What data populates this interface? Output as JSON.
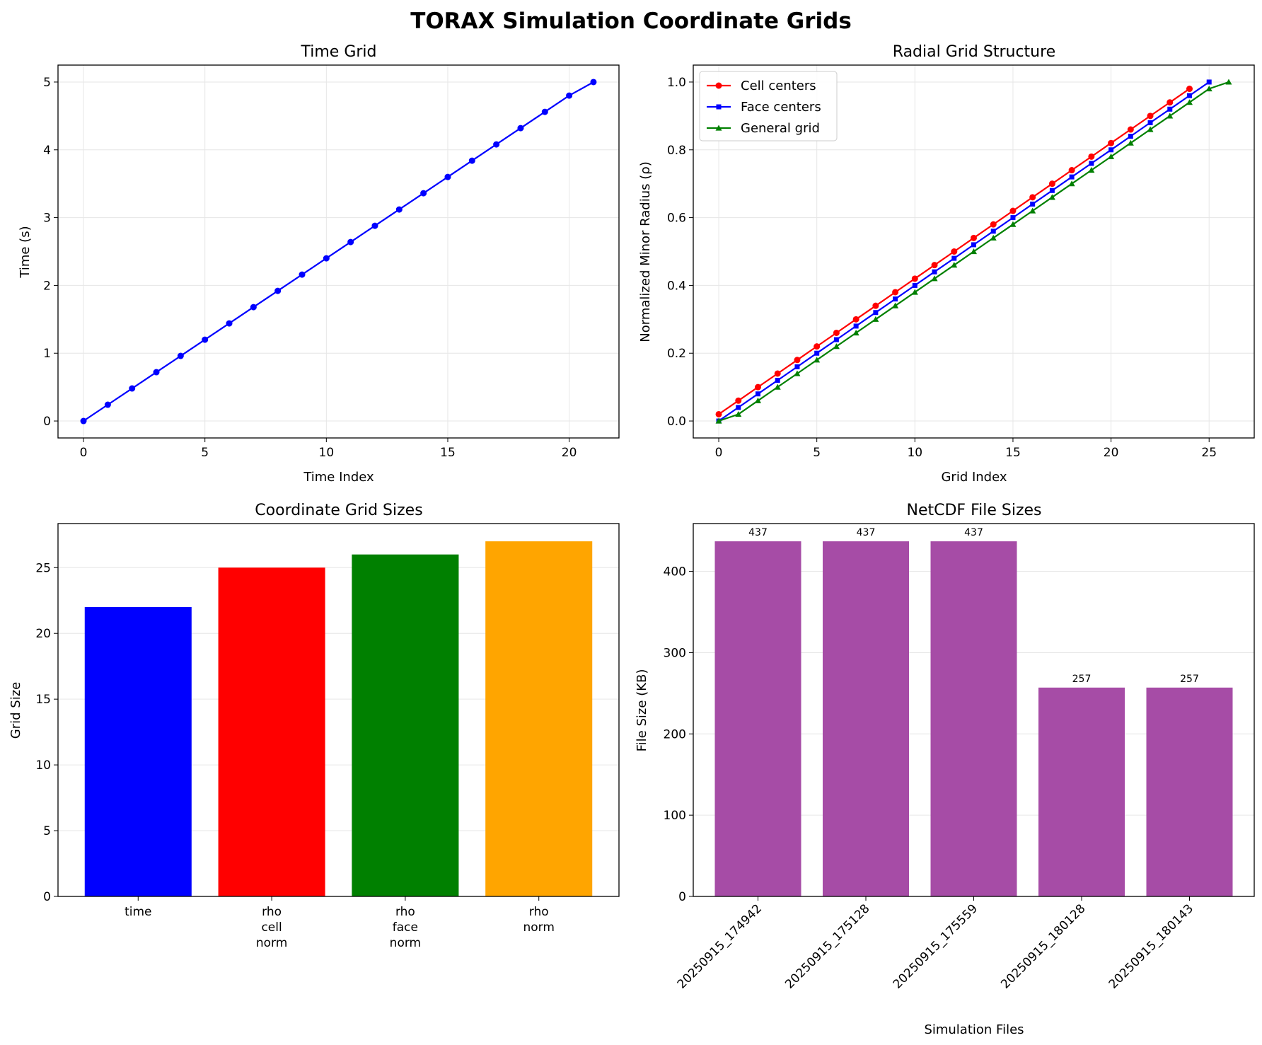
{
  "figure": {
    "suptitle": "TORAX Simulation Coordinate Grids"
  },
  "chart_data": [
    {
      "type": "line",
      "title": "Time Grid",
      "xlabel": "Time Index",
      "ylabel": "Time (s)",
      "xlim": [
        -1.05,
        22.05
      ],
      "ylim": [
        -0.25,
        5.25
      ],
      "xticks": [
        0,
        5,
        10,
        15,
        20
      ],
      "yticks": [
        0,
        1,
        2,
        3,
        4,
        5
      ],
      "grid": true,
      "series": [
        {
          "color": "#0000ff",
          "marker": "circle",
          "x": [
            0,
            1,
            2,
            3,
            4,
            5,
            6,
            7,
            8,
            9,
            10,
            11,
            12,
            13,
            14,
            15,
            16,
            17,
            18,
            19,
            20,
            21
          ],
          "y": [
            0,
            0.24,
            0.48,
            0.72,
            0.96,
            1.2,
            1.44,
            1.68,
            1.92,
            2.16,
            2.4,
            2.64,
            2.88,
            3.12,
            3.36,
            3.6,
            3.84,
            4.08,
            4.32,
            4.56,
            4.8,
            5.0
          ]
        }
      ]
    },
    {
      "type": "line",
      "title": "Radial Grid Structure",
      "xlabel": "Grid Index",
      "ylabel": "Normalized Minor Radius (ρ)",
      "xlim": [
        -1.3,
        27.3
      ],
      "ylim": [
        -0.05,
        1.05
      ],
      "xticks": [
        0,
        5,
        10,
        15,
        20,
        25
      ],
      "yticks": [
        0.0,
        0.2,
        0.4,
        0.6,
        0.8,
        1.0
      ],
      "ytick_labels": [
        "0.0",
        "0.2",
        "0.4",
        "0.6",
        "0.8",
        "1.0"
      ],
      "grid": true,
      "legend": "upper-left",
      "series": [
        {
          "name": "Cell centers",
          "color": "#ff0000",
          "marker": "circle",
          "x": [
            0,
            1,
            2,
            3,
            4,
            5,
            6,
            7,
            8,
            9,
            10,
            11,
            12,
            13,
            14,
            15,
            16,
            17,
            18,
            19,
            20,
            21,
            22,
            23,
            24
          ],
          "y": [
            0.02,
            0.06,
            0.1,
            0.14,
            0.18,
            0.22,
            0.26,
            0.3,
            0.34,
            0.38,
            0.42,
            0.46,
            0.5,
            0.54,
            0.58,
            0.62,
            0.66,
            0.7,
            0.74,
            0.78,
            0.82,
            0.86,
            0.9,
            0.94,
            0.98
          ]
        },
        {
          "name": "Face centers",
          "color": "#0000ff",
          "marker": "square",
          "x": [
            0,
            1,
            2,
            3,
            4,
            5,
            6,
            7,
            8,
            9,
            10,
            11,
            12,
            13,
            14,
            15,
            16,
            17,
            18,
            19,
            20,
            21,
            22,
            23,
            24,
            25
          ],
          "y": [
            0,
            0.04,
            0.08,
            0.12,
            0.16,
            0.2,
            0.24,
            0.28,
            0.32,
            0.36,
            0.4,
            0.44,
            0.48,
            0.52,
            0.56,
            0.6,
            0.64,
            0.68,
            0.72,
            0.76,
            0.8,
            0.84,
            0.88,
            0.92,
            0.96,
            1.0
          ]
        },
        {
          "name": "General grid",
          "color": "#008000",
          "marker": "triangle",
          "x": [
            0,
            1,
            2,
            3,
            4,
            5,
            6,
            7,
            8,
            9,
            10,
            11,
            12,
            13,
            14,
            15,
            16,
            17,
            18,
            19,
            20,
            21,
            22,
            23,
            24,
            25,
            26
          ],
          "y": [
            0,
            0.02,
            0.06,
            0.1,
            0.14,
            0.18,
            0.22,
            0.26,
            0.3,
            0.34,
            0.38,
            0.42,
            0.46,
            0.5,
            0.54,
            0.58,
            0.62,
            0.66,
            0.7,
            0.74,
            0.78,
            0.82,
            0.86,
            0.9,
            0.94,
            0.98,
            1.0
          ]
        }
      ]
    },
    {
      "type": "bar",
      "title": "Coordinate Grid Sizes",
      "xlabel": "",
      "ylabel": "Grid Size",
      "ylim": [
        0,
        28.35
      ],
      "yticks": [
        0,
        5,
        10,
        15,
        20,
        25
      ],
      "grid": "y",
      "categories": [
        [
          "time"
        ],
        [
          "rho",
          "cell",
          "norm"
        ],
        [
          "rho",
          "face",
          "norm"
        ],
        [
          "rho",
          "norm"
        ]
      ],
      "values": [
        22,
        25,
        26,
        27
      ],
      "colors": [
        "#0000ff",
        "#ff0000",
        "#008000",
        "#ffa500"
      ]
    },
    {
      "type": "bar",
      "title": "NetCDF File Sizes",
      "xlabel": "Simulation Files",
      "ylabel": "File Size (KB)",
      "ylim": [
        0,
        458.85
      ],
      "yticks": [
        0,
        100,
        200,
        300,
        400
      ],
      "grid": "y",
      "categories": [
        "20250915_174942",
        "20250915_175128",
        "20250915_175559",
        "20250915_180128",
        "20250915_180143"
      ],
      "values": [
        437,
        437,
        437,
        257,
        257
      ],
      "data_labels": [
        "437",
        "437",
        "437",
        "257",
        "257"
      ],
      "color": "#a64ca6"
    }
  ]
}
